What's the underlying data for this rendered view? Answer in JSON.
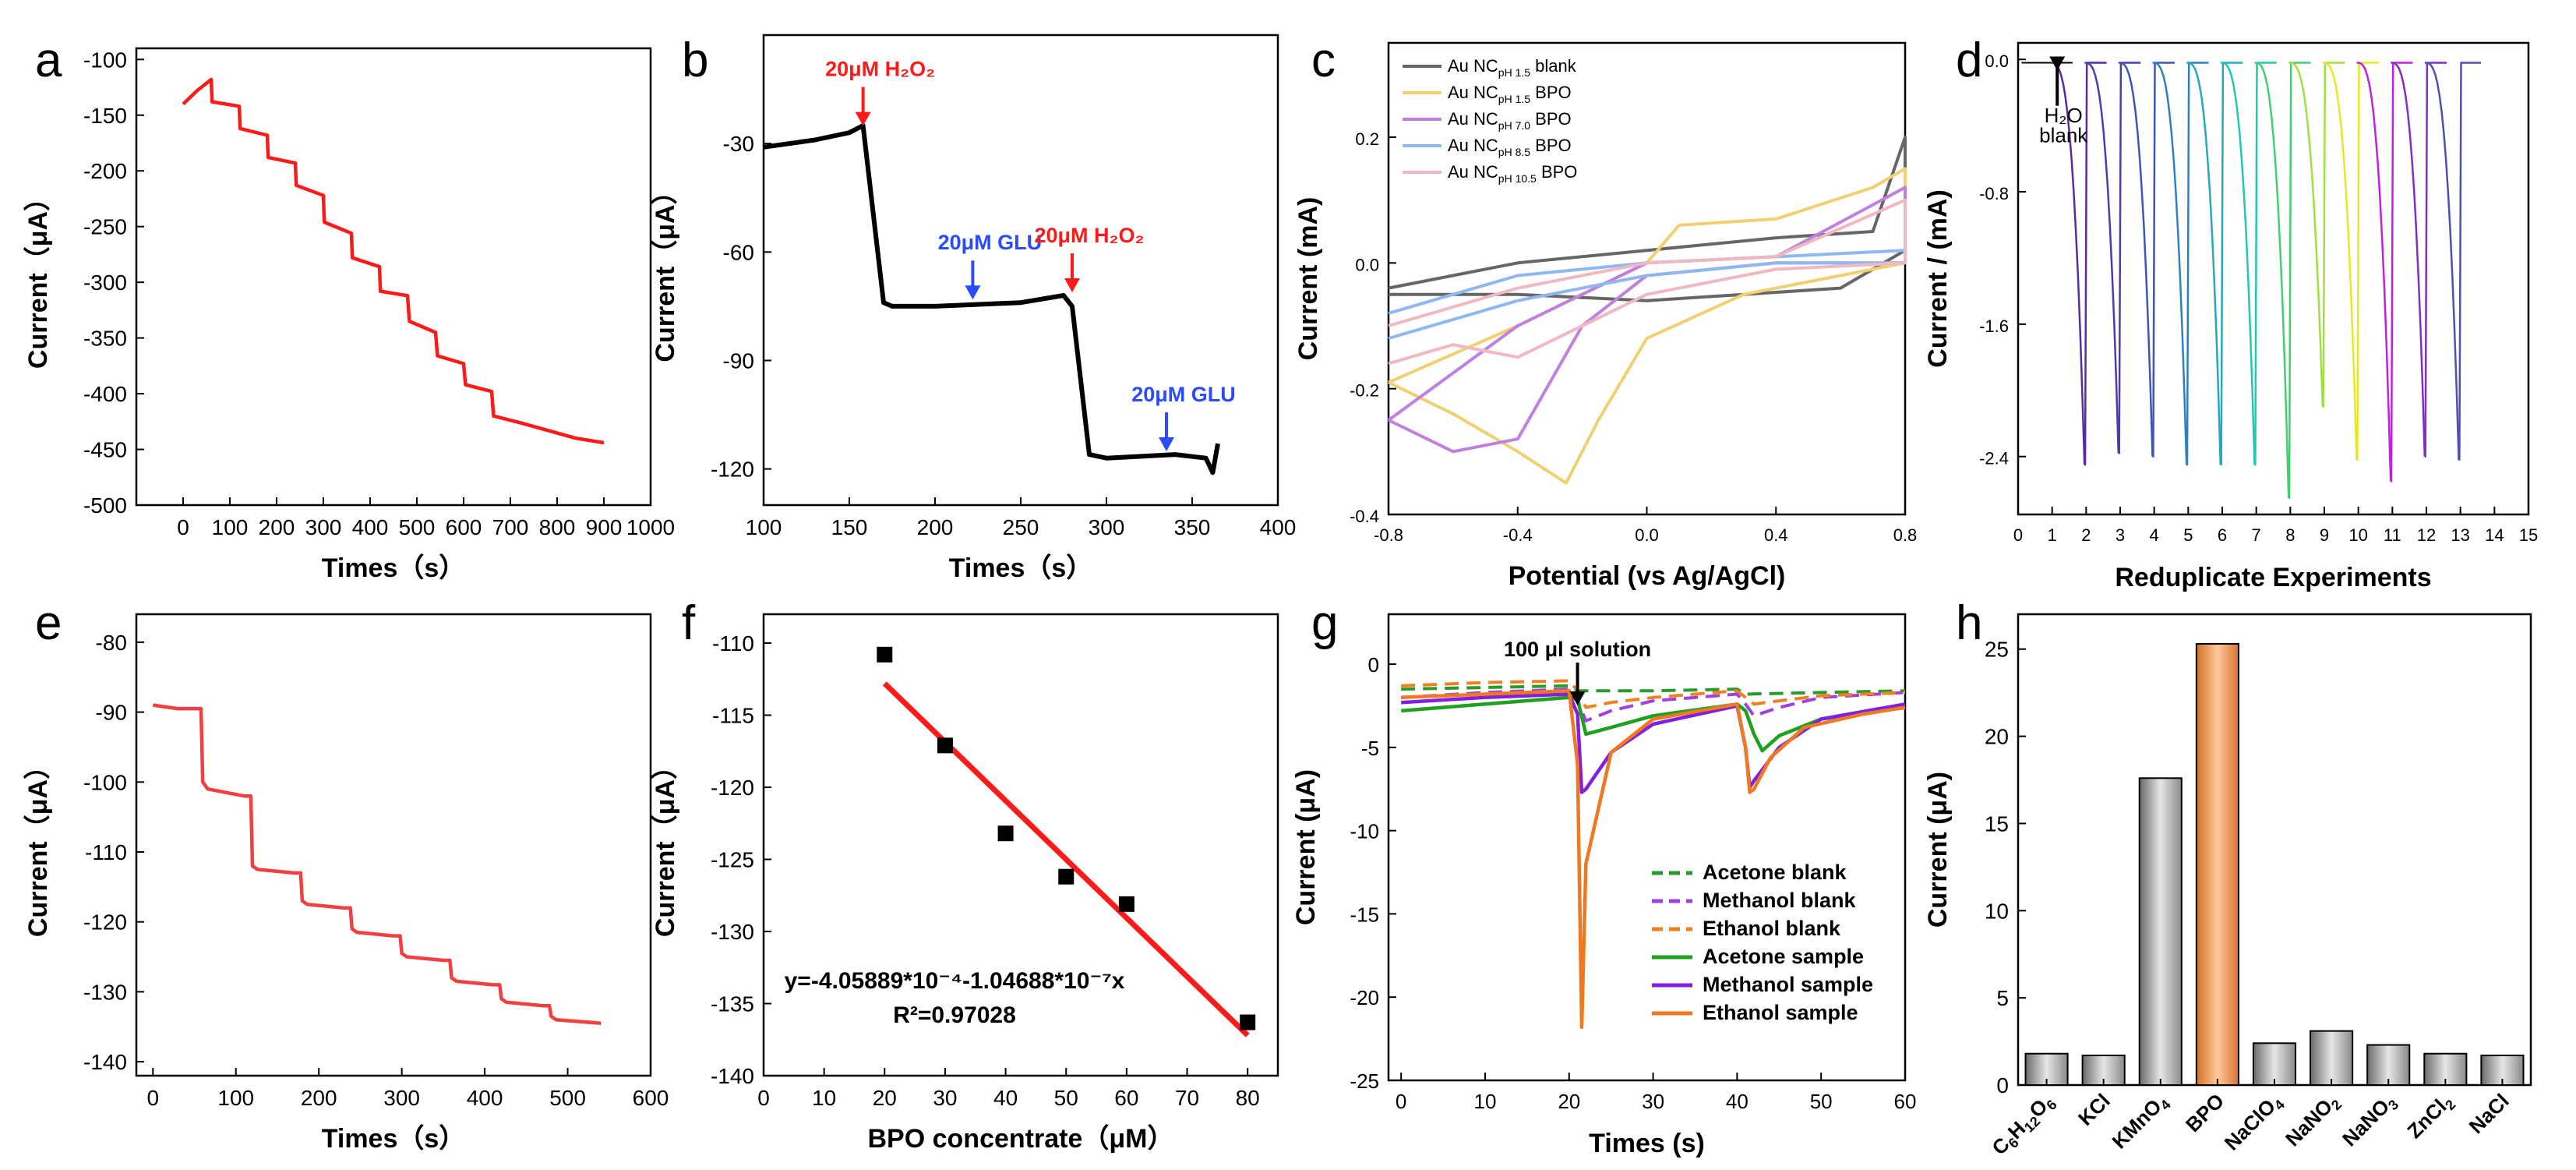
{
  "chart_data": [
    {
      "panel": "a",
      "type": "line",
      "color": "#ff1a1a",
      "xlabel": "Times（s）",
      "ylabel": "Current（μA）",
      "xlim": [
        -100,
        1000
      ],
      "ylim": [
        -500,
        -90
      ],
      "xticks": [
        "0",
        "100",
        "200",
        "300",
        "400",
        "500",
        "600",
        "700",
        "800",
        "900",
        "1000"
      ],
      "yticks": [
        "-500",
        "-450",
        "-400",
        "-350",
        "-300",
        "-250",
        "-200",
        "-150",
        "-100"
      ],
      "series": [
        {
          "name": "current",
          "x": [
            0,
            30,
            60,
            62,
            120,
            122,
            180,
            182,
            240,
            242,
            300,
            302,
            360,
            362,
            420,
            422,
            480,
            484,
            540,
            544,
            600,
            604,
            660,
            664,
            720,
            780,
            840,
            900
          ],
          "y": [
            -140,
            -128,
            -118,
            -138,
            -142,
            -162,
            -168,
            -188,
            -193,
            -213,
            -222,
            -246,
            -256,
            -278,
            -286,
            -308,
            -312,
            -335,
            -345,
            -366,
            -373,
            -392,
            -398,
            -420,
            -426,
            -433,
            -440,
            -444
          ]
        }
      ]
    },
    {
      "panel": "b",
      "type": "line",
      "color": "#000000",
      "xlabel": "Times（s）",
      "ylabel": "Current（μA）",
      "xlim": [
        100,
        400
      ],
      "ylim": [
        -130,
        0
      ],
      "xticks": [
        "100",
        "150",
        "200",
        "250",
        "300",
        "350",
        "400"
      ],
      "yticks": [
        "-120",
        "-90",
        "-60",
        "-30"
      ],
      "series": [
        {
          "name": "current",
          "x": [
            100,
            130,
            150,
            158,
            170,
            175,
            200,
            250,
            275,
            280,
            290,
            300,
            340,
            358,
            362,
            365
          ],
          "y": [
            -31,
            -29,
            -27,
            -25,
            -74,
            -75,
            -75,
            -74,
            -72,
            -75,
            -116,
            -117,
            -116,
            -117,
            -121,
            -113
          ]
        }
      ],
      "annotations": [
        {
          "text": "20μM H₂O₂",
          "x": 158,
          "y": -26,
          "color": "#ff1a1a"
        },
        {
          "text": "20μM GLU",
          "x": 222,
          "y": -74,
          "color": "#2a4bff"
        },
        {
          "text": "20μM H₂O₂",
          "x": 280,
          "y": -72,
          "color": "#ff1a1a"
        },
        {
          "text": "20μM GLU",
          "x": 335,
          "y": -116,
          "color": "#2a4bff"
        }
      ]
    },
    {
      "panel": "c",
      "type": "line",
      "xlabel": "Potential (vs Ag/AgCl)",
      "ylabel": "Current (mA)",
      "xlim": [
        -0.8,
        0.8
      ],
      "ylim": [
        -0.4,
        0.35
      ],
      "xticks": [
        "-0.8",
        "-0.4",
        "0.0",
        "0.4",
        "0.8"
      ],
      "yticks": [
        "-0.4",
        "-0.2",
        "0.0",
        "0.2"
      ],
      "series": [
        {
          "name": "Au NCpH 1.5 blank",
          "color": "#666666",
          "x": [
            -0.8,
            -0.4,
            0.0,
            0.4,
            0.7,
            0.8,
            0.8,
            0.6,
            0.3,
            0.0,
            -0.4,
            -0.8
          ],
          "y": [
            -0.04,
            0.0,
            0.02,
            0.04,
            0.05,
            0.2,
            0.02,
            -0.04,
            -0.05,
            -0.06,
            -0.05,
            -0.05
          ]
        },
        {
          "name": "Au NCpH 1.5 BPO",
          "color": "#f0d070",
          "x": [
            -0.8,
            -0.4,
            0.0,
            0.1,
            0.4,
            0.7,
            0.8,
            0.8,
            0.6,
            0.3,
            0.0,
            -0.15,
            -0.25,
            -0.4,
            -0.6,
            -0.8
          ],
          "y": [
            -0.19,
            -0.1,
            0.0,
            0.06,
            0.07,
            0.12,
            0.15,
            0.0,
            -0.02,
            -0.05,
            -0.12,
            -0.25,
            -0.35,
            -0.3,
            -0.24,
            -0.19
          ]
        },
        {
          "name": "Au NCpH 7.0 BPO",
          "color": "#c080e0",
          "x": [
            -0.8,
            -0.4,
            0.0,
            0.4,
            0.8,
            0.8,
            0.4,
            0.0,
            -0.2,
            -0.4,
            -0.6,
            -0.8
          ],
          "y": [
            -0.25,
            -0.1,
            0.0,
            0.01,
            0.12,
            0.0,
            0.0,
            -0.02,
            -0.1,
            -0.28,
            -0.3,
            -0.25
          ]
        },
        {
          "name": "Au NCpH 8.5 BPO",
          "color": "#90b8f0",
          "x": [
            -0.8,
            -0.4,
            0.0,
            0.4,
            0.8,
            0.8,
            0.4,
            0.0,
            -0.4,
            -0.8
          ],
          "y": [
            -0.08,
            -0.02,
            0.0,
            0.01,
            0.02,
            0.0,
            0.0,
            -0.02,
            -0.06,
            -0.12
          ]
        },
        {
          "name": "Au NCpH 10.5 BPO",
          "color": "#f0b8c0",
          "x": [
            -0.8,
            -0.4,
            0.0,
            0.4,
            0.8,
            0.8,
            0.4,
            0.0,
            -0.4,
            -0.6,
            -0.8
          ],
          "y": [
            -0.1,
            -0.04,
            0.0,
            0.01,
            0.1,
            0.0,
            -0.01,
            -0.05,
            -0.15,
            -0.13,
            -0.16
          ]
        }
      ],
      "legend": {
        "position": "top-left",
        "entries": [
          {
            "base": "Au NC",
            "sub": "pH 1.5",
            "suffix": " blank",
            "color": "#666666"
          },
          {
            "base": "Au NC",
            "sub": "pH 1.5",
            "suffix": "  BPO",
            "color": "#f0d070"
          },
          {
            "base": "Au NC",
            "sub": "pH 7.0",
            "suffix": "  BPO",
            "color": "#c080e0"
          },
          {
            "base": "Au NC",
            "sub": "pH 8.5",
            "suffix": "  BPO",
            "color": "#90b8f0"
          },
          {
            "base": "Au NC",
            "sub": "pH 10.5",
            "suffix": "  BPO",
            "color": "#f0b8c0"
          }
        ]
      }
    },
    {
      "panel": "d",
      "type": "line",
      "xlabel": "Reduplicate Experiments",
      "ylabel": "Current / (mA)",
      "xlim": [
        0,
        15
      ],
      "ylim": [
        -2.75,
        0.1
      ],
      "xticks": [
        "0",
        "1",
        "2",
        "3",
        "4",
        "5",
        "6",
        "7",
        "8",
        "9",
        "10",
        "11",
        "12",
        "13",
        "14",
        "15"
      ],
      "yticks": [
        "-2.4",
        "-1.6",
        "-0.8",
        "0.0"
      ],
      "baseline": -0.02,
      "spikes": [
        {
          "x": 1,
          "y": -0.1,
          "color": "#000000"
        },
        {
          "x": 2,
          "y": -2.45,
          "color": "#5a2aa0"
        },
        {
          "x": 3,
          "y": -2.38,
          "color": "#4a3db0"
        },
        {
          "x": 4,
          "y": -2.4,
          "color": "#3d55b8"
        },
        {
          "x": 5,
          "y": -2.45,
          "color": "#2f7fc0"
        },
        {
          "x": 6,
          "y": -2.45,
          "color": "#26a6c0"
        },
        {
          "x": 7,
          "y": -2.45,
          "color": "#20c8b0"
        },
        {
          "x": 8,
          "y": -2.65,
          "color": "#40d070"
        },
        {
          "x": 9,
          "y": -2.1,
          "color": "#a0e040"
        },
        {
          "x": 10,
          "y": -2.42,
          "color": "#e8e820"
        },
        {
          "x": 11,
          "y": -2.55,
          "color": "#c020e0"
        },
        {
          "x": 12,
          "y": -2.4,
          "color": "#8030c0"
        },
        {
          "x": 13,
          "y": -2.42,
          "color": "#5050b0"
        }
      ],
      "annotation": {
        "line1": "H₂O",
        "line2": "blank"
      }
    },
    {
      "panel": "e",
      "type": "line",
      "color": "#f04040",
      "xlabel": "Times（s）",
      "ylabel": "Current（μA）",
      "xlim": [
        -20,
        600
      ],
      "ylim": [
        -142,
        -76
      ],
      "xticks": [
        "0",
        "100",
        "200",
        "300",
        "400",
        "500",
        "600"
      ],
      "yticks": [
        "-140",
        "-130",
        "-120",
        "-110",
        "-100",
        "-90",
        "-80"
      ],
      "series": [
        {
          "name": "current",
          "x": [
            0,
            30,
            58,
            60,
            66,
            110,
            118,
            120,
            126,
            170,
            178,
            180,
            186,
            230,
            238,
            240,
            246,
            290,
            298,
            300,
            306,
            350,
            358,
            360,
            366,
            410,
            418,
            420,
            426,
            470,
            478,
            480,
            486,
            540
          ],
          "y": [
            -89,
            -89.5,
            -89.5,
            -100,
            -101,
            -102,
            -102,
            -112,
            -112.5,
            -113,
            -113,
            -117,
            -117.5,
            -118,
            -118,
            -121,
            -121.5,
            -122,
            -122,
            -124.5,
            -125,
            -125.5,
            -125.5,
            -128,
            -128.5,
            -129,
            -129,
            -131,
            -131.5,
            -132,
            -132,
            -133.5,
            -134,
            -134.5
          ]
        }
      ]
    },
    {
      "panel": "f",
      "type": "scatter",
      "xlabel": "BPO concentrate（μM）",
      "ylabel": "Current（μA）",
      "xlim": [
        0,
        85
      ],
      "ylim": [
        -140,
        -108
      ],
      "xticks": [
        "0",
        "10",
        "20",
        "30",
        "40",
        "50",
        "60",
        "70",
        "80"
      ],
      "yticks": [
        "-140",
        "-135",
        "-130",
        "-125",
        "-120",
        "-115",
        "-110"
      ],
      "points": {
        "x": [
          20,
          30,
          40,
          50,
          60,
          80
        ],
        "y": [
          -110.8,
          -117.1,
          -123.2,
          -126.2,
          -128.1,
          -136.3
        ]
      },
      "fit": {
        "x": [
          20,
          80
        ],
        "y": [
          -112.8,
          -137.2
        ],
        "color": "#ff1a1a"
      },
      "equation": "y=-4.05889*10⁻⁴-1.04688*10⁻⁷x",
      "r2": "R²=0.97028"
    },
    {
      "panel": "g",
      "type": "line",
      "xlabel": "Times (s)",
      "ylabel": "Current (μA)",
      "xlim": [
        -1.5,
        60
      ],
      "ylim": [
        -25,
        3
      ],
      "xticks": [
        "0",
        "10",
        "20",
        "30",
        "40",
        "50",
        "60"
      ],
      "yticks": [
        "-25",
        "-20",
        "-15",
        "-10",
        "-5",
        "0"
      ],
      "annotation": {
        "text": "100 μl solution",
        "x": 21
      },
      "series": [
        {
          "name": "Acetone blank",
          "color": "#2a9a2a",
          "dash": true,
          "x": [
            0,
            10,
            20,
            21,
            30,
            40,
            41,
            50,
            60
          ],
          "y": [
            -1.5,
            -1.4,
            -1.3,
            -1.6,
            -1.6,
            -1.5,
            -1.8,
            -1.7,
            -1.6
          ]
        },
        {
          "name": "Methanol blank",
          "color": "#a040e0",
          "dash": true,
          "x": [
            0,
            10,
            20,
            21,
            22,
            25,
            30,
            40,
            41,
            42,
            45,
            50,
            60
          ],
          "y": [
            -2,
            -1.7,
            -1.5,
            -2.2,
            -3.4,
            -2.8,
            -2.2,
            -1.8,
            -2.4,
            -3.1,
            -2.6,
            -2,
            -1.7
          ]
        },
        {
          "name": "Ethanol blank",
          "color": "#f08020",
          "dash": true,
          "x": [
            0,
            10,
            20,
            21,
            22,
            25,
            30,
            40,
            41,
            42,
            45,
            50,
            60
          ],
          "y": [
            -1.3,
            -1.1,
            -1,
            -1.6,
            -2.6,
            -2.3,
            -2,
            -1.6,
            -2,
            -2.4,
            -2.2,
            -1.9,
            -1.7
          ]
        },
        {
          "name": "Acetone sample",
          "color": "#20a020",
          "dash": false,
          "x": [
            0,
            10,
            20,
            21,
            22,
            25,
            30,
            40,
            41,
            42,
            43,
            45,
            50,
            60
          ],
          "y": [
            -2.8,
            -2.4,
            -2,
            -2.1,
            -4.2,
            -3.8,
            -3.1,
            -2.4,
            -2.8,
            -4.2,
            -5.2,
            -4.3,
            -3.3,
            -2.6
          ]
        },
        {
          "name": "Methanol sample",
          "color": "#8020e0",
          "dash": false,
          "x": [
            0,
            10,
            20,
            21,
            21.5,
            22,
            25,
            30,
            40,
            41,
            41.5,
            42,
            45,
            50,
            60
          ],
          "y": [
            -2.3,
            -2,
            -1.8,
            -3,
            -7.7,
            -7.5,
            -5.3,
            -3.6,
            -2.5,
            -5,
            -7.4,
            -7,
            -5,
            -3.3,
            -2.4
          ]
        },
        {
          "name": "Ethanol sample",
          "color": "#f07820",
          "dash": false,
          "x": [
            0,
            10,
            20,
            21,
            21.5,
            22,
            25,
            30,
            40,
            41,
            41.5,
            42,
            44,
            48,
            55,
            60
          ],
          "y": [
            -2,
            -1.8,
            -1.6,
            -6,
            -21.8,
            -12,
            -5.3,
            -3.3,
            -2.4,
            -5,
            -7.7,
            -7.5,
            -5.6,
            -3.8,
            -3,
            -2.6
          ]
        }
      ],
      "legend": {
        "position": "bottom-center"
      }
    },
    {
      "panel": "h",
      "type": "bar",
      "ylabel": "Current (μA)",
      "ylim": [
        0,
        27
      ],
      "yticks": [
        "0",
        "5",
        "10",
        "15",
        "20",
        "25"
      ],
      "categories": [
        {
          "base": "C",
          "parts": [
            [
              "6",
              "sub"
            ],
            [
              "H",
              "n"
            ],
            [
              "12",
              "sub"
            ],
            [
              "O",
              "n"
            ],
            [
              "6",
              "sub"
            ]
          ]
        },
        {
          "base": "KCl",
          "parts": []
        },
        {
          "base": "KMnO",
          "parts": [
            [
              "4",
              "sub"
            ]
          ]
        },
        {
          "base": "BPO",
          "parts": []
        },
        {
          "base": "NaClO",
          "parts": [
            [
              "4",
              "sub"
            ]
          ]
        },
        {
          "base": "NaNO",
          "parts": [
            [
              "2",
              "sub"
            ]
          ]
        },
        {
          "base": "NaNO",
          "parts": [
            [
              "3",
              "sub"
            ]
          ]
        },
        {
          "base": "ZnCl",
          "parts": [
            [
              "2",
              "sub"
            ]
          ]
        },
        {
          "base": "NaCl",
          "parts": []
        }
      ],
      "values": [
        1.8,
        1.7,
        17.6,
        25.3,
        2.4,
        3.1,
        2.3,
        1.8,
        1.7
      ],
      "colors": [
        "#a0a0a0",
        "#a0a0a0",
        "#a0a0a0",
        "#f0a060",
        "#a0a0a0",
        "#a0a0a0",
        "#a0a0a0",
        "#a0a0a0",
        "#a0a0a0"
      ]
    }
  ],
  "panel_labels": [
    "a",
    "b",
    "c",
    "d",
    "e",
    "f",
    "g",
    "h"
  ]
}
